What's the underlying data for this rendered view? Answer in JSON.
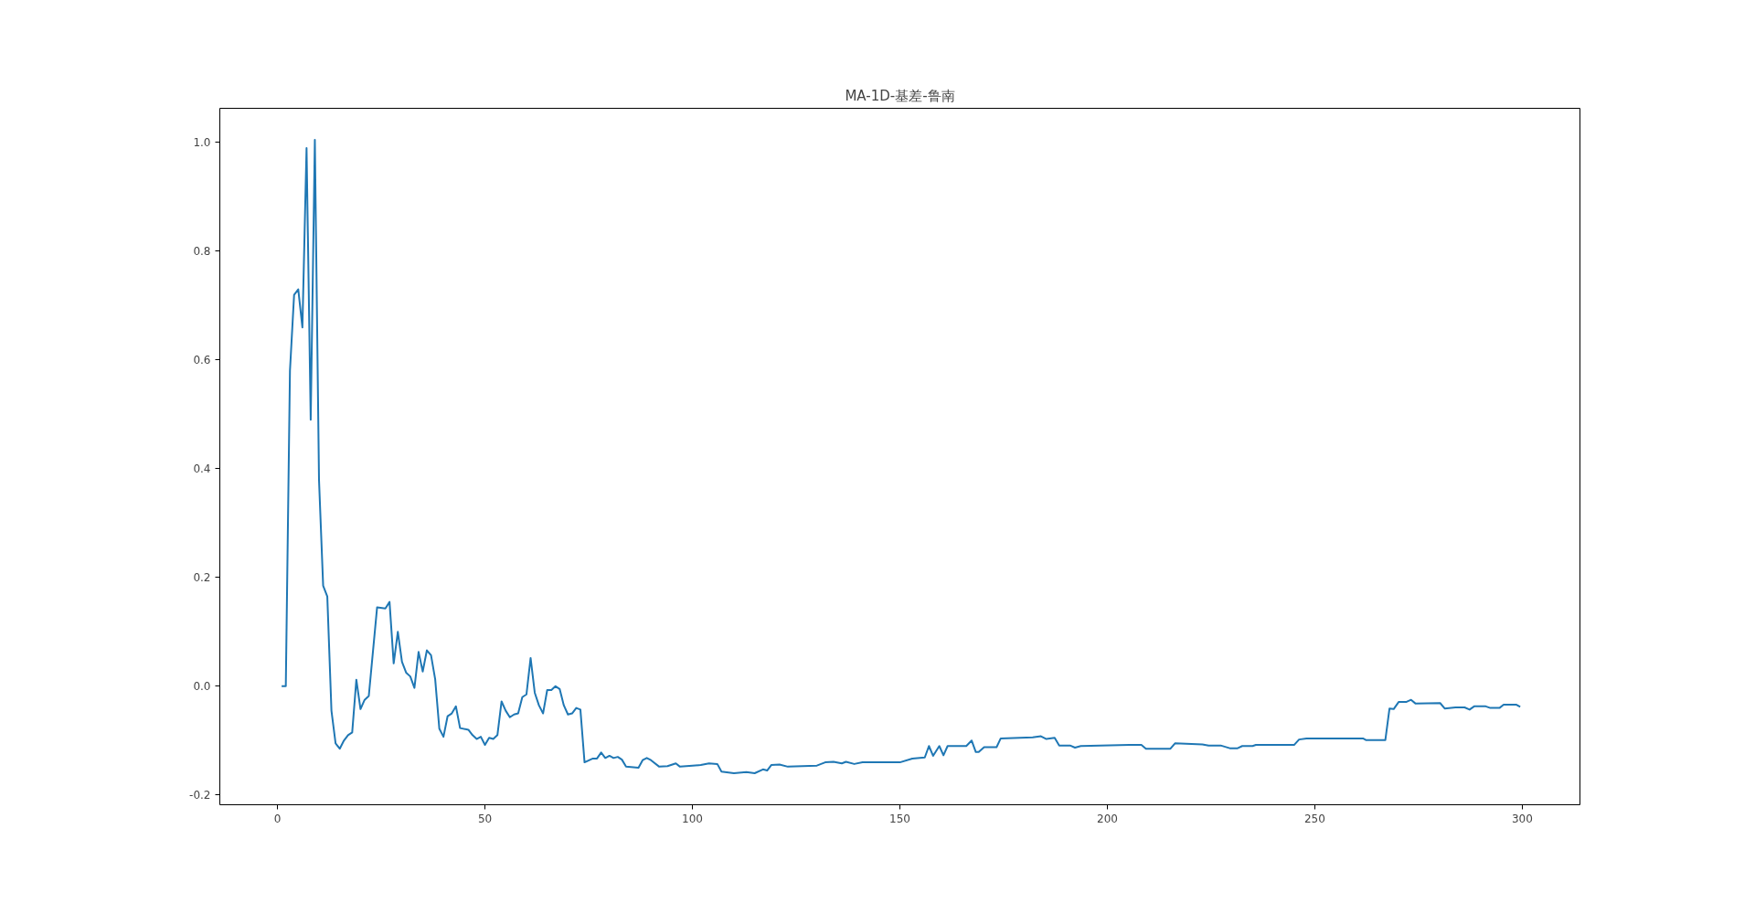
{
  "chart_data": {
    "type": "line",
    "title": "MA-1D-基差-鲁南",
    "x": [
      1,
      2,
      3,
      4,
      5,
      6,
      7,
      8,
      9,
      10,
      11,
      12,
      13,
      14,
      15,
      16,
      17,
      18,
      19,
      20,
      21,
      22,
      24,
      26,
      27,
      28,
      29,
      30,
      31,
      32,
      33,
      34,
      35,
      36,
      37,
      38,
      39,
      40,
      41,
      42,
      43,
      44,
      46,
      47,
      48,
      49,
      50,
      51,
      52,
      53,
      54,
      55,
      56,
      57,
      58,
      59,
      60,
      61,
      62,
      63,
      64,
      65,
      66,
      67,
      68,
      69,
      70,
      71,
      72,
      73,
      74,
      76,
      77,
      78,
      79,
      80,
      81,
      82,
      83,
      84,
      87,
      88,
      89,
      90,
      92,
      94,
      96,
      97,
      100,
      102,
      104,
      106,
      107,
      110,
      113,
      115,
      117,
      118,
      119,
      121,
      123,
      130,
      132,
      134,
      136,
      137,
      139,
      141,
      150,
      153,
      156,
      157,
      158,
      159.5,
      160.5,
      161.5,
      166,
      167.3,
      168.3,
      169,
      170.3,
      173.3,
      174.3,
      182,
      184,
      185.3,
      187.3,
      188.4,
      191,
      192.2,
      193.6,
      205.3,
      208.2,
      209.3,
      215.2,
      216.3,
      222.9,
      224.4,
      227.3,
      229.5,
      231.4,
      232.5,
      235,
      235.8,
      245,
      246.2,
      248,
      261.6,
      262.3,
      267,
      268,
      269,
      270.2,
      272,
      273.2,
      274.3,
      280.2,
      281.3,
      283.9,
      286.1,
      287.3,
      288.4,
      291.2,
      292.3,
      294.5,
      295.5,
      298.6,
      299.5
    ],
    "series": [
      {
        "color": "#1f77b4",
        "values": [
          0.0,
          0.0,
          0.58,
          0.72,
          0.73,
          0.66,
          0.99,
          0.49,
          1.005,
          0.38,
          0.185,
          0.165,
          -0.045,
          -0.105,
          -0.115,
          -0.1,
          -0.09,
          -0.085,
          0.012,
          -0.042,
          -0.025,
          -0.018,
          0.145,
          0.143,
          0.155,
          0.042,
          0.1,
          0.045,
          0.025,
          0.018,
          -0.003,
          0.063,
          0.027,
          0.066,
          0.057,
          0.013,
          -0.078,
          -0.093,
          -0.055,
          -0.05,
          -0.037,
          -0.077,
          -0.08,
          -0.09,
          -0.097,
          -0.093,
          -0.108,
          -0.095,
          -0.097,
          -0.09,
          -0.028,
          -0.045,
          -0.057,
          -0.052,
          -0.05,
          -0.02,
          -0.015,
          0.052,
          -0.012,
          -0.035,
          -0.05,
          -0.007,
          -0.007,
          0.0,
          -0.005,
          -0.035,
          -0.052,
          -0.05,
          -0.04,
          -0.043,
          -0.14,
          -0.133,
          -0.133,
          -0.122,
          -0.132,
          -0.128,
          -0.132,
          -0.13,
          -0.135,
          -0.148,
          -0.15,
          -0.136,
          -0.132,
          -0.136,
          -0.148,
          -0.147,
          -0.142,
          -0.148,
          -0.146,
          -0.145,
          -0.142,
          -0.143,
          -0.157,
          -0.16,
          -0.158,
          -0.16,
          -0.153,
          -0.155,
          -0.145,
          -0.144,
          -0.148,
          -0.146,
          -0.14,
          -0.139,
          -0.142,
          -0.139,
          -0.143,
          -0.14,
          -0.14,
          -0.133,
          -0.131,
          -0.11,
          -0.128,
          -0.11,
          -0.127,
          -0.11,
          -0.11,
          -0.1,
          -0.121,
          -0.121,
          -0.112,
          -0.112,
          -0.096,
          -0.094,
          -0.092,
          -0.097,
          -0.095,
          -0.109,
          -0.109,
          -0.113,
          -0.11,
          -0.108,
          -0.108,
          -0.115,
          -0.115,
          -0.105,
          -0.107,
          -0.109,
          -0.109,
          -0.114,
          -0.114,
          -0.11,
          -0.11,
          -0.108,
          -0.108,
          -0.098,
          -0.096,
          -0.096,
          -0.099,
          -0.099,
          -0.041,
          -0.042,
          -0.029,
          -0.029,
          -0.025,
          -0.032,
          -0.031,
          -0.041,
          -0.039,
          -0.039,
          -0.043,
          -0.037,
          -0.037,
          -0.04,
          -0.04,
          -0.034,
          -0.034,
          -0.038
        ]
      }
    ],
    "xlim": [
      -13.9,
      313.9
    ],
    "ylim": [
      -0.218,
      1.063
    ],
    "xticks": [
      0,
      50,
      100,
      150,
      200,
      250,
      300
    ],
    "yticks": [
      {
        "value": -0.2,
        "label": "-0.2"
      },
      {
        "value": 0.0,
        "label": "0.0"
      },
      {
        "value": 0.2,
        "label": "0.2"
      },
      {
        "value": 0.4,
        "label": "0.4"
      },
      {
        "value": 0.6,
        "label": "0.6"
      },
      {
        "value": 0.8,
        "label": "0.8"
      },
      {
        "value": 1.0,
        "label": "1.0"
      }
    ],
    "grid": false,
    "line_style": "solid"
  }
}
